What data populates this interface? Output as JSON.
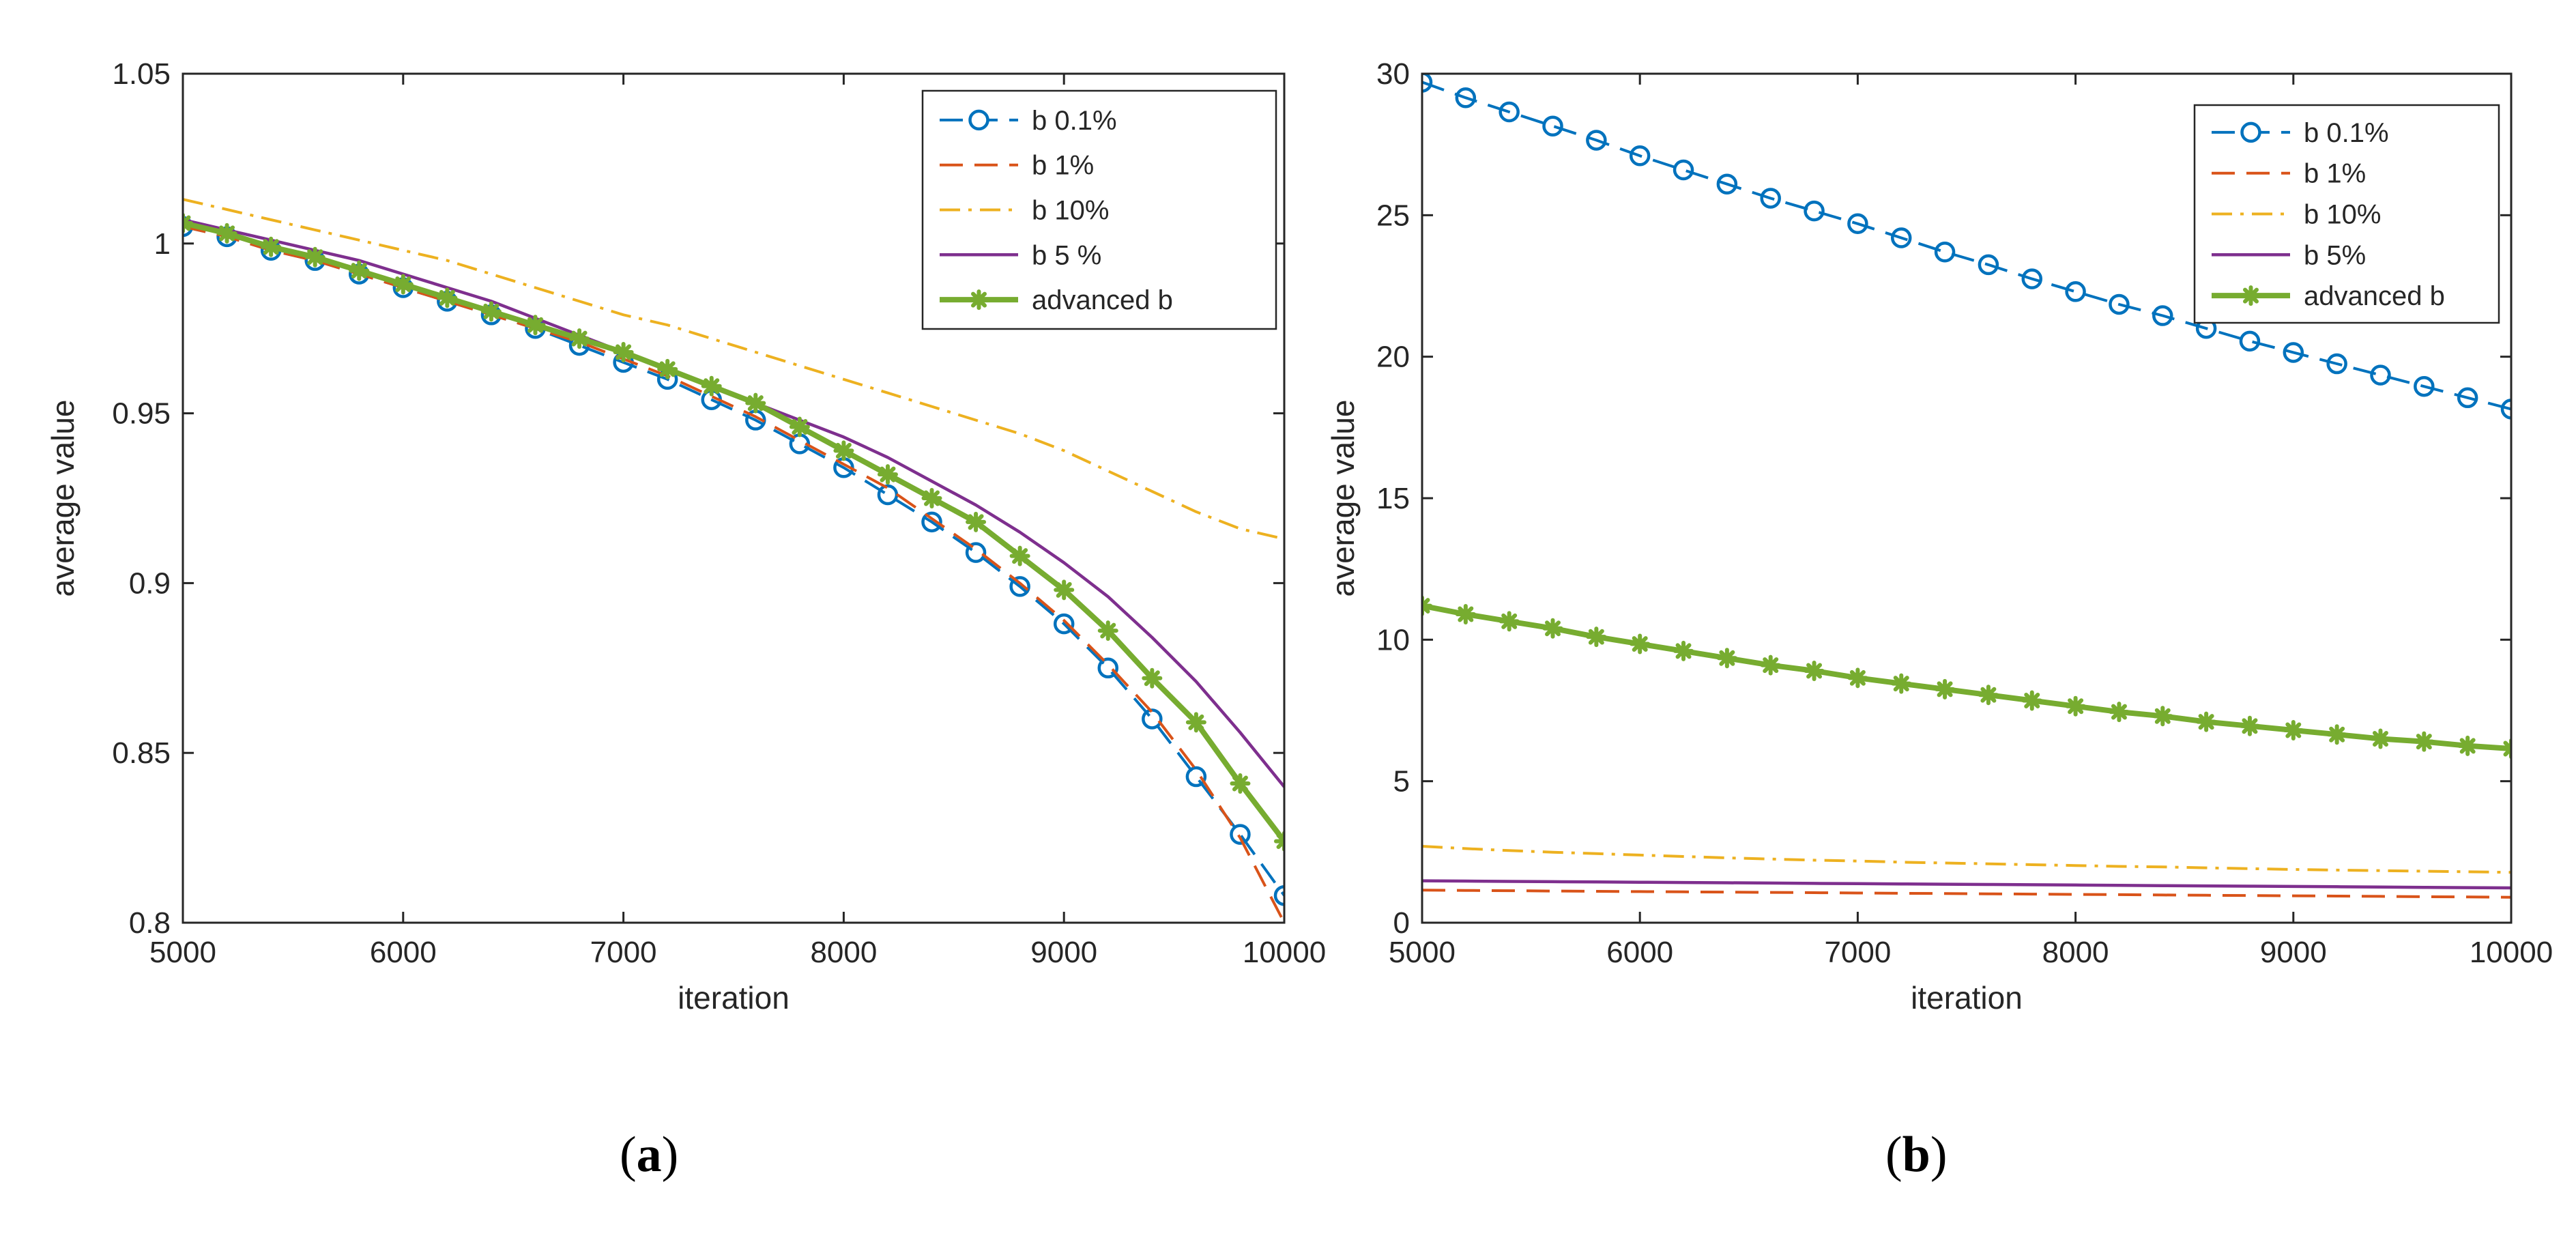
{
  "chart_data": [
    {
      "panel": "a",
      "caption": {
        "open": "(",
        "letter": "a",
        "close": ")"
      },
      "type": "line",
      "title": "",
      "xlabel": "iteration",
      "ylabel": "average value",
      "xlim": [
        5000,
        10000
      ],
      "ylim": [
        0.8,
        1.05
      ],
      "xticks": [
        5000,
        6000,
        7000,
        8000,
        9000,
        10000
      ],
      "xtick_labels": [
        "5000",
        "6000",
        "7000",
        "8000",
        "9000",
        "10000"
      ],
      "yticks": [
        0.8,
        0.85,
        0.9,
        0.95,
        1,
        1.05
      ],
      "ytick_labels": [
        "0.8",
        "0.85",
        "0.9",
        "0.95",
        "1",
        "1.05"
      ],
      "legend_position": "top-right",
      "x": [
        5000,
        5200,
        5400,
        5600,
        5800,
        6000,
        6200,
        6400,
        6600,
        6800,
        7000,
        7200,
        7400,
        7600,
        7800,
        8000,
        8200,
        8400,
        8600,
        8800,
        9000,
        9200,
        9400,
        9600,
        9800,
        10000
      ],
      "series": [
        {
          "name": "b 0.1%",
          "color": "#0072BD",
          "style": "dashed-circle",
          "values": [
            1.005,
            1.002,
            0.998,
            0.995,
            0.991,
            0.987,
            0.983,
            0.979,
            0.975,
            0.97,
            0.965,
            0.96,
            0.954,
            0.948,
            0.941,
            0.934,
            0.926,
            0.918,
            0.909,
            0.899,
            0.888,
            0.875,
            0.86,
            0.843,
            0.826,
            0.808
          ]
        },
        {
          "name": "b 1%",
          "color": "#D95319",
          "style": "dashed",
          "values": [
            1.005,
            1.002,
            0.998,
            0.995,
            0.991,
            0.987,
            0.983,
            0.979,
            0.975,
            0.971,
            0.966,
            0.961,
            0.955,
            0.949,
            0.942,
            0.935,
            0.928,
            0.919,
            0.91,
            0.9,
            0.889,
            0.876,
            0.862,
            0.845,
            0.825,
            0.8
          ]
        },
        {
          "name": "b 10%",
          "color": "#EDB120",
          "style": "dashdot",
          "values": [
            1.013,
            1.01,
            1.007,
            1.004,
            1.001,
            0.998,
            0.995,
            0.991,
            0.987,
            0.983,
            0.979,
            0.976,
            0.972,
            0.968,
            0.964,
            0.96,
            0.956,
            0.952,
            0.948,
            0.944,
            0.939,
            0.933,
            0.927,
            0.921,
            0.916,
            0.913
          ]
        },
        {
          "name": "b 5 %",
          "color": "#7E2F8E",
          "style": "solid",
          "values": [
            1.007,
            1.004,
            1.001,
            0.998,
            0.995,
            0.991,
            0.987,
            0.983,
            0.978,
            0.973,
            0.968,
            0.963,
            0.958,
            0.953,
            0.948,
            0.943,
            0.937,
            0.93,
            0.923,
            0.915,
            0.906,
            0.896,
            0.884,
            0.871,
            0.856,
            0.84
          ]
        },
        {
          "name": "advanced b",
          "color": "#77AC30",
          "style": "solid-star",
          "values": [
            1.006,
            1.003,
            0.999,
            0.996,
            0.992,
            0.988,
            0.984,
            0.98,
            0.976,
            0.972,
            0.968,
            0.963,
            0.958,
            0.953,
            0.946,
            0.939,
            0.932,
            0.925,
            0.918,
            0.908,
            0.898,
            0.886,
            0.872,
            0.859,
            0.841,
            0.824
          ]
        }
      ]
    },
    {
      "panel": "b",
      "caption": {
        "open": "(",
        "letter": "b",
        "close": ")"
      },
      "type": "line",
      "title": "",
      "xlabel": "iteration",
      "ylabel": "average value",
      "xlim": [
        5000,
        10000
      ],
      "ylim": [
        0,
        30
      ],
      "xticks": [
        5000,
        6000,
        7000,
        8000,
        9000,
        10000
      ],
      "xtick_labels": [
        "5000",
        "6000",
        "7000",
        "8000",
        "9000",
        "10000"
      ],
      "yticks": [
        0,
        5,
        10,
        15,
        20,
        25,
        30
      ],
      "ytick_labels": [
        "0",
        "5",
        "10",
        "15",
        "20",
        "25",
        "30"
      ],
      "legend_position": "top-right",
      "x": [
        5000,
        5200,
        5400,
        5600,
        5800,
        6000,
        6200,
        6400,
        6600,
        6800,
        7000,
        7200,
        7400,
        7600,
        7800,
        8000,
        8200,
        8400,
        8600,
        8800,
        9000,
        9200,
        9400,
        9600,
        9800,
        10000
      ],
      "series": [
        {
          "name": "b 0.1%",
          "color": "#0072BD",
          "style": "dashed-circle",
          "values": [
            29.7,
            29.15,
            28.65,
            28.15,
            27.65,
            27.1,
            26.6,
            26.1,
            25.6,
            25.15,
            24.7,
            24.2,
            23.7,
            23.25,
            22.75,
            22.3,
            21.85,
            21.45,
            21.0,
            20.55,
            20.15,
            19.75,
            19.35,
            18.95,
            18.55,
            18.15
          ]
        },
        {
          "name": "b 1%",
          "color": "#D95319",
          "style": "dashed",
          "values": [
            1.15,
            1.14,
            1.13,
            1.12,
            1.11,
            1.1,
            1.09,
            1.08,
            1.07,
            1.06,
            1.05,
            1.04,
            1.03,
            1.02,
            1.01,
            1.0,
            0.99,
            0.98,
            0.97,
            0.96,
            0.95,
            0.94,
            0.93,
            0.92,
            0.91,
            0.9
          ]
        },
        {
          "name": "b 10%",
          "color": "#EDB120",
          "style": "dashdot",
          "values": [
            2.7,
            2.62,
            2.55,
            2.49,
            2.44,
            2.39,
            2.34,
            2.29,
            2.25,
            2.21,
            2.18,
            2.14,
            2.11,
            2.08,
            2.05,
            2.02,
            1.99,
            1.97,
            1.94,
            1.91,
            1.88,
            1.86,
            1.84,
            1.82,
            1.8,
            1.78
          ]
        },
        {
          "name": "b 5%",
          "color": "#7E2F8E",
          "style": "solid",
          "values": [
            1.48,
            1.47,
            1.46,
            1.45,
            1.44,
            1.43,
            1.42,
            1.41,
            1.4,
            1.39,
            1.38,
            1.37,
            1.36,
            1.35,
            1.34,
            1.33,
            1.32,
            1.31,
            1.3,
            1.29,
            1.28,
            1.27,
            1.26,
            1.25,
            1.24,
            1.23
          ]
        },
        {
          "name": "advanced b",
          "color": "#77AC30",
          "style": "solid-star",
          "values": [
            11.2,
            10.9,
            10.65,
            10.4,
            10.1,
            9.85,
            9.6,
            9.35,
            9.1,
            8.9,
            8.65,
            8.45,
            8.25,
            8.05,
            7.85,
            7.65,
            7.45,
            7.3,
            7.1,
            6.95,
            6.8,
            6.65,
            6.5,
            6.4,
            6.25,
            6.15
          ]
        }
      ]
    }
  ]
}
